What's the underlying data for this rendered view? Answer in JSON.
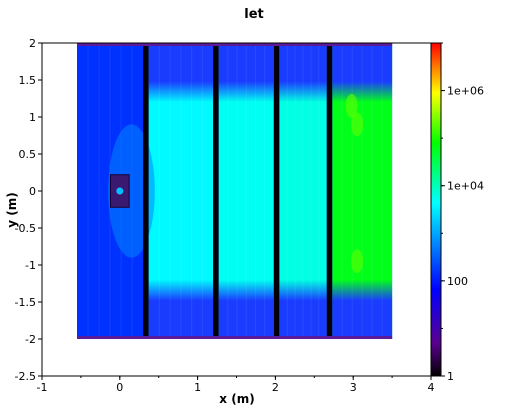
{
  "chart_data": {
    "type": "heatmap",
    "title": "let",
    "xlabel": "x (m)",
    "ylabel": "y (m)",
    "xlim": [
      -1,
      4
    ],
    "ylim": [
      -2.5,
      2
    ],
    "x_ticks": [
      "-1",
      "0",
      "1",
      "2",
      "3",
      "4"
    ],
    "y_ticks": [
      "2",
      "1.5",
      "1",
      "0.5",
      "0",
      "-0.5",
      "-1",
      "-1.5",
      "-2",
      "-2.5"
    ],
    "colorbar": {
      "scale": "log",
      "range": [
        1,
        10000000
      ],
      "tick_labels": [
        "1e+06",
        "1e+04",
        "100",
        "1"
      ],
      "colors": [
        "#000000",
        "#5a0090",
        "#0000ff",
        "#00ffff",
        "#00ff00",
        "#ffff00",
        "#ff0000"
      ]
    },
    "field_extent": {
      "x": [
        -0.55,
        3.5
      ],
      "y": [
        -2.0,
        2.0
      ]
    },
    "gaps_x": [
      [
        0.3,
        0.37
      ],
      [
        1.2,
        1.27
      ],
      [
        1.98,
        2.05
      ],
      [
        2.66,
        2.73
      ]
    ],
    "regions": [
      {
        "x": [
          -0.55,
          0.3
        ],
        "value": 150
      },
      {
        "x": [
          0.37,
          1.2
        ],
        "value": 4000
      },
      {
        "x": [
          1.27,
          1.98
        ],
        "value": 5000
      },
      {
        "x": [
          2.05,
          2.66
        ],
        "value": 6000
      },
      {
        "x": [
          2.73,
          3.5
        ],
        "value": 60000
      }
    ],
    "source": {
      "x": 0.0,
      "y": 0.0,
      "value": 1500
    }
  }
}
